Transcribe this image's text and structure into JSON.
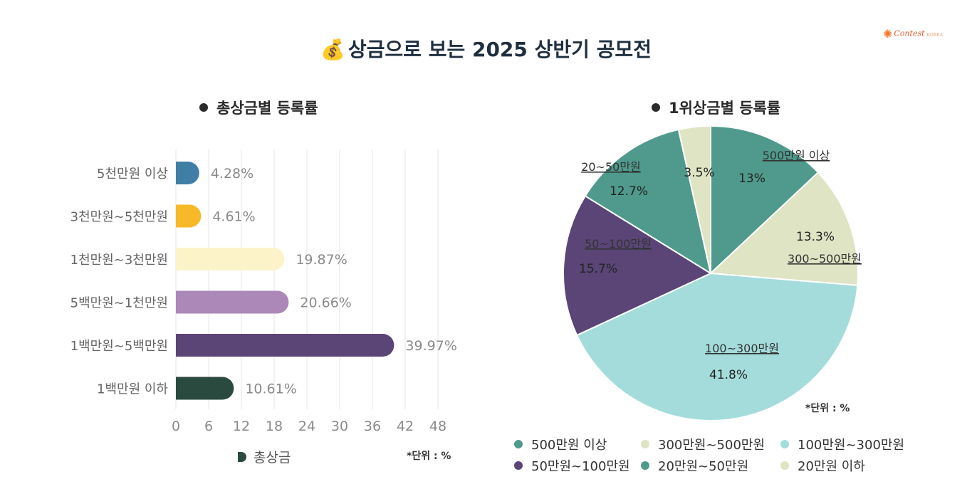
{
  "header": {
    "title": "상금으로 보는 2025 상반기 공모전",
    "logo_text": "Contest",
    "logo_sub": "KOREA"
  },
  "colors": {
    "teal": "#4f9a8c",
    "cream": "#dfe4c4",
    "lightblue": "#a4dcdc",
    "purple": "#5a4576",
    "bar_blue": "#3f7fa5",
    "bar_yellow": "#f7b928",
    "bar_cream": "#fdf3c8",
    "bar_lilac": "#ab88b7",
    "bar_purple": "#5a4576",
    "bar_dark": "#2a4a40"
  },
  "chart_data": [
    {
      "type": "bar",
      "orientation": "horizontal",
      "title": "총상금별 등록률",
      "categories": [
        "5천만원 이상",
        "3천만원~5천만원",
        "1천만원~3천만원",
        "5백만원~1천만원",
        "1백만원~5백만원",
        "1백만원 이하"
      ],
      "values": [
        4.28,
        4.61,
        19.87,
        20.66,
        39.97,
        10.61
      ],
      "value_labels": [
        "4.28%",
        "4.61%",
        "19.87%",
        "20.66%",
        "39.97%",
        "10.61%"
      ],
      "bar_colors": [
        "#3f7fa5",
        "#f7b928",
        "#fdf3c8",
        "#ab88b7",
        "#5a4576",
        "#2a4a40"
      ],
      "xlim": [
        0,
        48
      ],
      "xticks": [
        0,
        6,
        12,
        18,
        24,
        30,
        36,
        42,
        48
      ],
      "grid": true,
      "legend": [
        "총상금"
      ],
      "unit_note": "*단위 : %"
    },
    {
      "type": "pie",
      "title": "1위상금별 등록률",
      "slices": [
        {
          "label": "500만원 이상",
          "value": 13,
          "value_label": "13%",
          "color": "#4f9a8c"
        },
        {
          "label": "300~500만원",
          "value": 13.3,
          "value_label": "13.3%",
          "color": "#dfe4c4"
        },
        {
          "label": "100~300만원",
          "value": 41.8,
          "value_label": "41.8%",
          "color": "#a4dcdc"
        },
        {
          "label": "50~100만원",
          "value": 15.7,
          "value_label": "15.7%",
          "color": "#5a4576"
        },
        {
          "label": "20~50만원",
          "value": 12.7,
          "value_label": "12.7%",
          "color": "#4f9a8c"
        },
        {
          "label": "",
          "value": 3.5,
          "value_label": "3.5%",
          "color": "#dfe4c4"
        }
      ],
      "legend": [
        {
          "label": "500만원 이상",
          "color": "#4f9a8c"
        },
        {
          "label": "300만원~500만원",
          "color": "#dfe4c4"
        },
        {
          "label": "100만원~300만원",
          "color": "#a4dcdc"
        },
        {
          "label": "50만원~100만원",
          "color": "#5a4576"
        },
        {
          "label": "20만원~50만원",
          "color": "#4f9a8c"
        },
        {
          "label": "20만원 이하",
          "color": "#dfe4c4"
        }
      ],
      "unit_note": "*단위 : %"
    }
  ]
}
